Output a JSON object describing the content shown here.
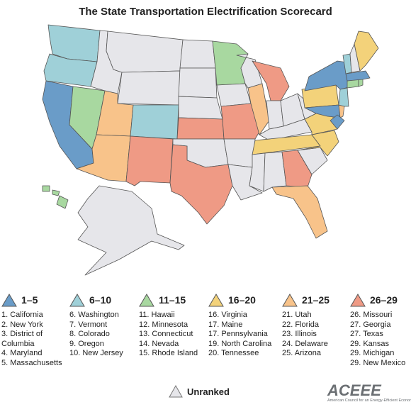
{
  "title": "The State Transportation Electrification Scorecard",
  "colors": {
    "tier1": "#6a9cc8",
    "tier2": "#9fd0d8",
    "tier3": "#a8d8a0",
    "tier4": "#f3d27a",
    "tier5": "#f8c38a",
    "tier6": "#ef9a85",
    "unranked": "#e6e6ea",
    "border": "#555555"
  },
  "legend": [
    {
      "range": "1–5",
      "color": "#6a9cc8",
      "items": [
        "1. California",
        "2. New York",
        "3. District of\n    Columbia",
        "4. Maryland",
        "5. Massachusetts"
      ]
    },
    {
      "range": "6–10",
      "color": "#9fd0d8",
      "items": [
        "6. Washington",
        "7.  Vermont",
        "8. Colorado",
        "9. Oregon",
        "10. New Jersey"
      ]
    },
    {
      "range": "11–15",
      "color": "#a8d8a0",
      "items": [
        "11. Hawaii",
        "12. Minnesota",
        "13. Connecticut",
        "14. Nevada",
        "15. Rhode Island"
      ]
    },
    {
      "range": "16–20",
      "color": "#f3d27a",
      "items": [
        "16. Virginia",
        "17. Maine",
        "17. Pennsylvania",
        "19. North Carolina",
        "20. Tennessee"
      ]
    },
    {
      "range": "21–25",
      "color": "#f8c38a",
      "items": [
        "21. Utah",
        "22. Florida",
        "23.  Illinois",
        "24. Delaware",
        "25. Arizona"
      ]
    },
    {
      "range": "26–29",
      "color": "#ef9a85",
      "items": [
        "26. Missouri",
        "27. Georgia",
        "27. Texas",
        "29. Kansas",
        "29. Michigan",
        "29. New Mexico"
      ]
    }
  ],
  "unranked_label": "Unranked",
  "logo": {
    "name": "ACEEE",
    "tagline": "American Council for an Energy-Efficient Economy"
  }
}
